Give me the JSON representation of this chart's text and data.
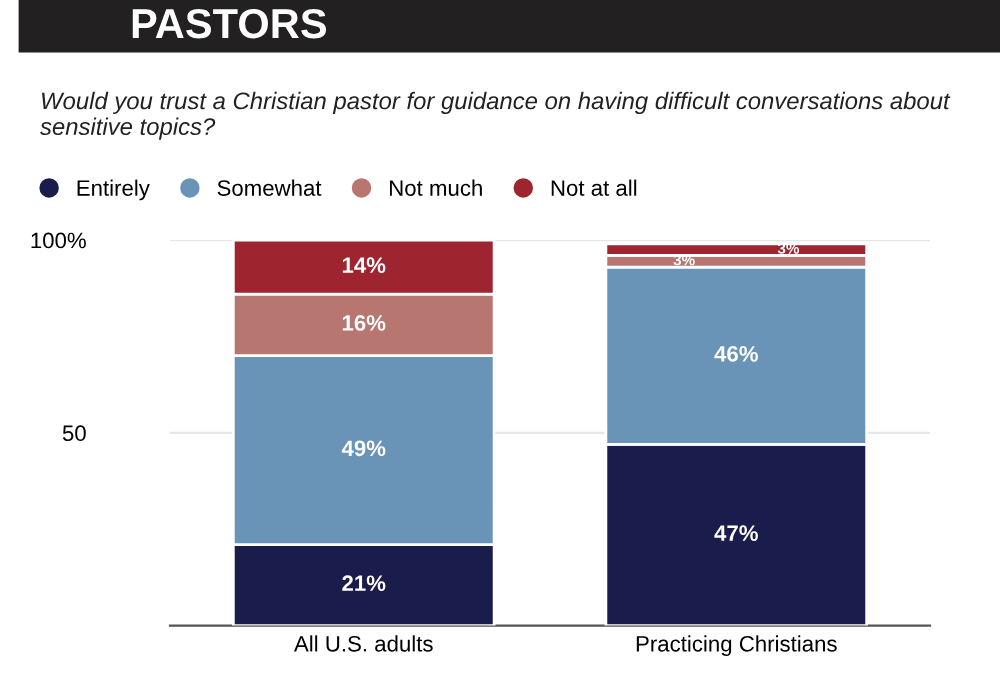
{
  "chart_data": {
    "type": "bar",
    "stacked": true,
    "title": "PASTORS",
    "subtitle": "Would you trust a Christian pastor for guidance on having difficult conversations about sensitive topics?",
    "categories": [
      "All U.S. adults",
      "Practicing Christians"
    ],
    "series": [
      {
        "name": "Entirely",
        "color": "#1a1c4b",
        "values": [
          21,
          47
        ],
        "value_labels": [
          "21%",
          "47%"
        ]
      },
      {
        "name": "Somewhat",
        "color": "#6994b8",
        "values": [
          49,
          46
        ],
        "value_labels": [
          "49%",
          "46%"
        ]
      },
      {
        "name": "Not much",
        "color": "#b87670",
        "values": [
          16,
          3
        ],
        "value_labels": [
          "16%",
          "3%"
        ]
      },
      {
        "name": "Not at all",
        "color": "#9e2530",
        "values": [
          14,
          3
        ],
        "value_labels": [
          "14%",
          "3%"
        ]
      }
    ],
    "ylim": [
      0,
      100
    ],
    "yticks": [
      {
        "value": 50,
        "label": "50"
      },
      {
        "value": 100,
        "label": "100%"
      }
    ],
    "grid": "y",
    "legend": "top left"
  }
}
